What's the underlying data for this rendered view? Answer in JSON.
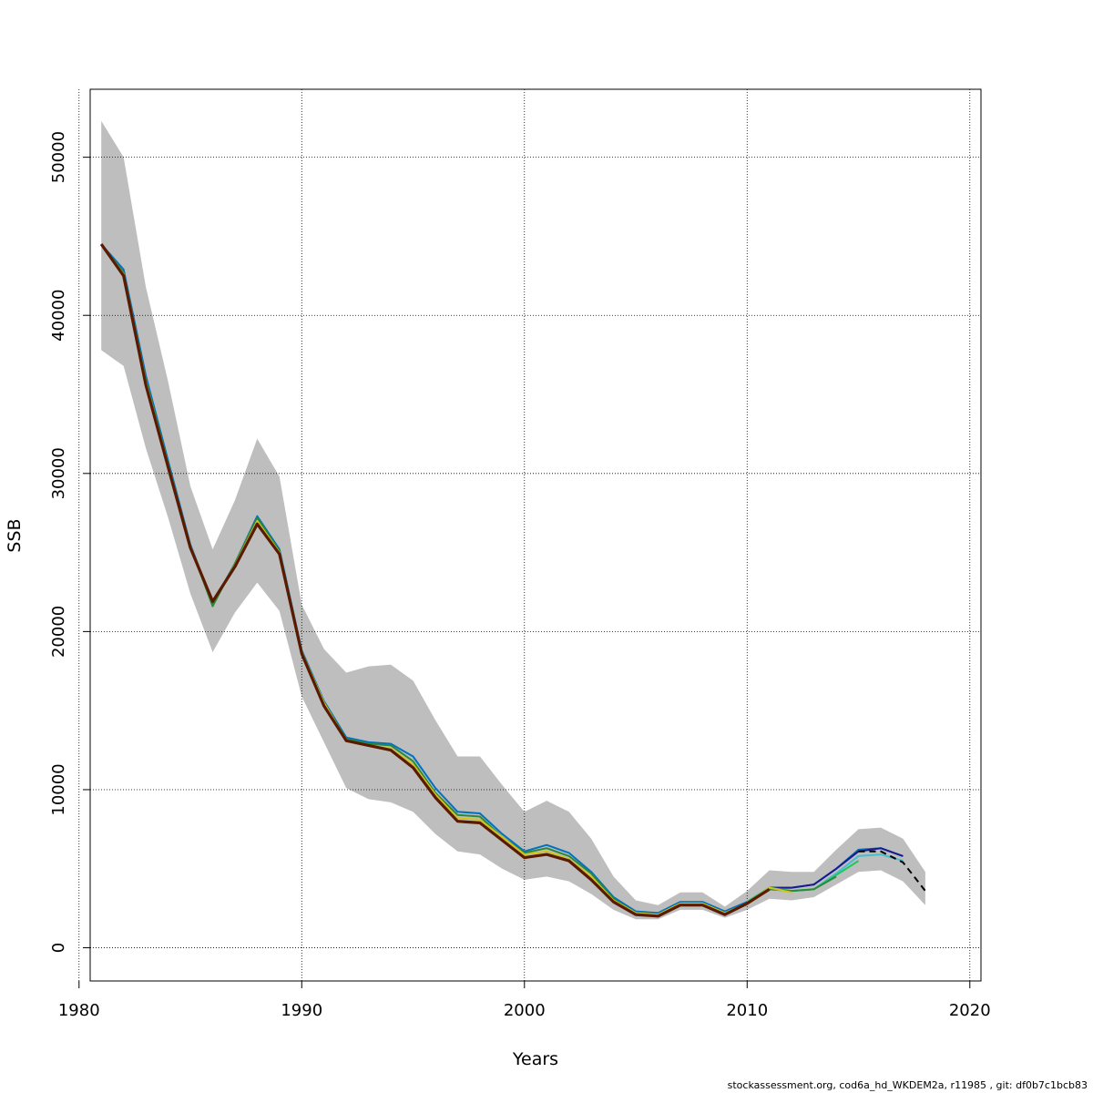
{
  "chart_data": {
    "type": "line",
    "xlabel": "Years",
    "ylabel": "SSB",
    "xlim": [
      1980.5,
      2020.5
    ],
    "ylim": [
      -2100,
      54300
    ],
    "x_ticks": [
      1980,
      1990,
      2000,
      2010,
      2020
    ],
    "y_ticks": [
      0,
      10000,
      20000,
      30000,
      40000,
      50000
    ],
    "grid": true,
    "footer": "stockassessment.org, cod6a_hd_WKDEM2a, r11985 , git: df0b7c1bcb83",
    "band": {
      "color": "#bebebe",
      "x": [
        1981,
        1982,
        1983,
        1984,
        1985,
        1986,
        1987,
        1988,
        1989,
        1990,
        1991,
        1992,
        1993,
        1994,
        1995,
        1996,
        1997,
        1998,
        1999,
        2000,
        2001,
        2002,
        2003,
        2004,
        2005,
        2006,
        2007,
        2008,
        2009,
        2010,
        2011,
        2012,
        2013,
        2014,
        2015,
        2016,
        2017,
        2018
      ],
      "upper": [
        52300,
        50000,
        41800,
        35800,
        29200,
        25200,
        28300,
        32200,
        29800,
        21700,
        18900,
        17400,
        17800,
        17900,
        16900,
        14400,
        12100,
        12100,
        10300,
        8600,
        9300,
        8600,
        6900,
        4500,
        3000,
        2700,
        3500,
        3500,
        2600,
        3600,
        4900,
        4800,
        4800,
        6200,
        7500,
        7600,
        6900,
        4800
      ],
      "lower": [
        37800,
        36800,
        31600,
        27200,
        22400,
        18700,
        21200,
        23100,
        21300,
        15900,
        13000,
        10100,
        9400,
        9200,
        8600,
        7200,
        6100,
        5900,
        5000,
        4300,
        4500,
        4200,
        3400,
        2400,
        1800,
        1800,
        2400,
        2400,
        1900,
        2400,
        3100,
        3000,
        3200,
        4000,
        4800,
        4900,
        4200,
        2700
      ]
    },
    "series": [
      {
        "color": "#0070c0",
        "style": "solid",
        "x": [
          1981,
          1982,
          1983,
          1984,
          1985,
          1986,
          1987,
          1988,
          1989,
          1990,
          1991,
          1992,
          1993,
          1994,
          1995,
          1996,
          1997,
          1998,
          1999,
          2000,
          2001,
          2002,
          2003,
          2004,
          2005,
          2006,
          2007,
          2008,
          2009,
          2010,
          2011,
          2012,
          2013,
          2014,
          2015,
          2016,
          2017
        ],
        "y": [
          44500,
          42900,
          36200,
          30800,
          25500,
          21800,
          24300,
          27300,
          25200,
          18800,
          15600,
          13300,
          13000,
          12900,
          12100,
          10100,
          8600,
          8500,
          7200,
          6100,
          6500,
          6000,
          4800,
          3200,
          2300,
          2200,
          2900,
          2900,
          2300,
          2900,
          3800,
          3800,
          4000,
          5000,
          6200,
          6300,
          5800
        ]
      },
      {
        "color": "#1a1a8c",
        "style": "solid",
        "x": [
          2011,
          2012,
          2013,
          2014,
          2015,
          2016,
          2017
        ],
        "y": [
          3800,
          3800,
          4000,
          5000,
          6100,
          6300,
          5800
        ]
      },
      {
        "color": "#40c0d0",
        "style": "solid",
        "x": [
          2011,
          2012,
          2013,
          2014,
          2015,
          2016,
          2017
        ],
        "y": [
          3700,
          3600,
          3700,
          4700,
          5800,
          5900,
          5500
        ]
      },
      {
        "color": "#1ec85a",
        "style": "solid",
        "x": [
          2010,
          2011,
          2012,
          2013,
          2014,
          2015
        ],
        "y": [
          2900,
          3800,
          3600,
          3700,
          4600,
          5500
        ]
      },
      {
        "color": "#2a8a3a",
        "style": "solid",
        "x": [
          1981,
          1982,
          1983,
          1984,
          1985,
          1986,
          1987,
          1988,
          1989,
          1990,
          1991,
          1992,
          1993,
          1994,
          1995,
          1996,
          1997,
          1998,
          1999,
          2000,
          2001,
          2002,
          2003,
          2004,
          2005,
          2006,
          2007,
          2008,
          2009,
          2010,
          2011,
          2012,
          2013,
          2014
        ],
        "y": [
          44500,
          42700,
          35900,
          30600,
          25400,
          21600,
          24300,
          27200,
          25100,
          18700,
          15500,
          13200,
          12900,
          12800,
          11800,
          9800,
          8400,
          8300,
          7000,
          6000,
          6300,
          5800,
          4700,
          3100,
          2200,
          2100,
          2800,
          2800,
          2200,
          2800,
          3700,
          3600,
          3700,
          4500
        ]
      },
      {
        "color": "#d4c21a",
        "style": "solid",
        "x": [
          1981,
          1982,
          1983,
          1984,
          1985,
          1986,
          1987,
          1988,
          1989,
          1990,
          1991,
          1992,
          1993,
          1994,
          1995,
          1996,
          1997,
          1998,
          1999,
          2000,
          2001,
          2002,
          2003,
          2004,
          2005,
          2006,
          2007,
          2008,
          2009,
          2010,
          2011,
          2012
        ],
        "y": [
          44500,
          42600,
          35800,
          30500,
          25400,
          21900,
          24200,
          27000,
          25000,
          18700,
          15500,
          13100,
          12800,
          12600,
          11600,
          9700,
          8200,
          8100,
          7000,
          5900,
          6100,
          5600,
          4500,
          3000,
          2200,
          2100,
          2800,
          2800,
          2200,
          2800,
          3800,
          3500
        ]
      },
      {
        "color": "#5a1a00",
        "style": "solid",
        "width": 3.2,
        "x": [
          1981,
          1982,
          1983,
          1984,
          1985,
          1986,
          1987,
          1988,
          1989,
          1990,
          1991,
          1992,
          1993,
          1994,
          1995,
          1996,
          1997,
          1998,
          1999,
          2000,
          2001,
          2002,
          2003,
          2004,
          2005,
          2006,
          2007,
          2008,
          2009,
          2010,
          2011
        ],
        "y": [
          44500,
          42500,
          35600,
          30400,
          25300,
          21900,
          24100,
          26800,
          24900,
          18600,
          15300,
          13100,
          12800,
          12500,
          11400,
          9500,
          8000,
          7900,
          6800,
          5700,
          5900,
          5500,
          4300,
          2900,
          2100,
          2000,
          2700,
          2700,
          2100,
          2800,
          3700
        ]
      },
      {
        "color": "#000000",
        "style": "dashed",
        "width": 2,
        "x": [
          2015,
          2016,
          2017,
          2018
        ],
        "y": [
          6100,
          6100,
          5400,
          3600
        ]
      }
    ]
  }
}
